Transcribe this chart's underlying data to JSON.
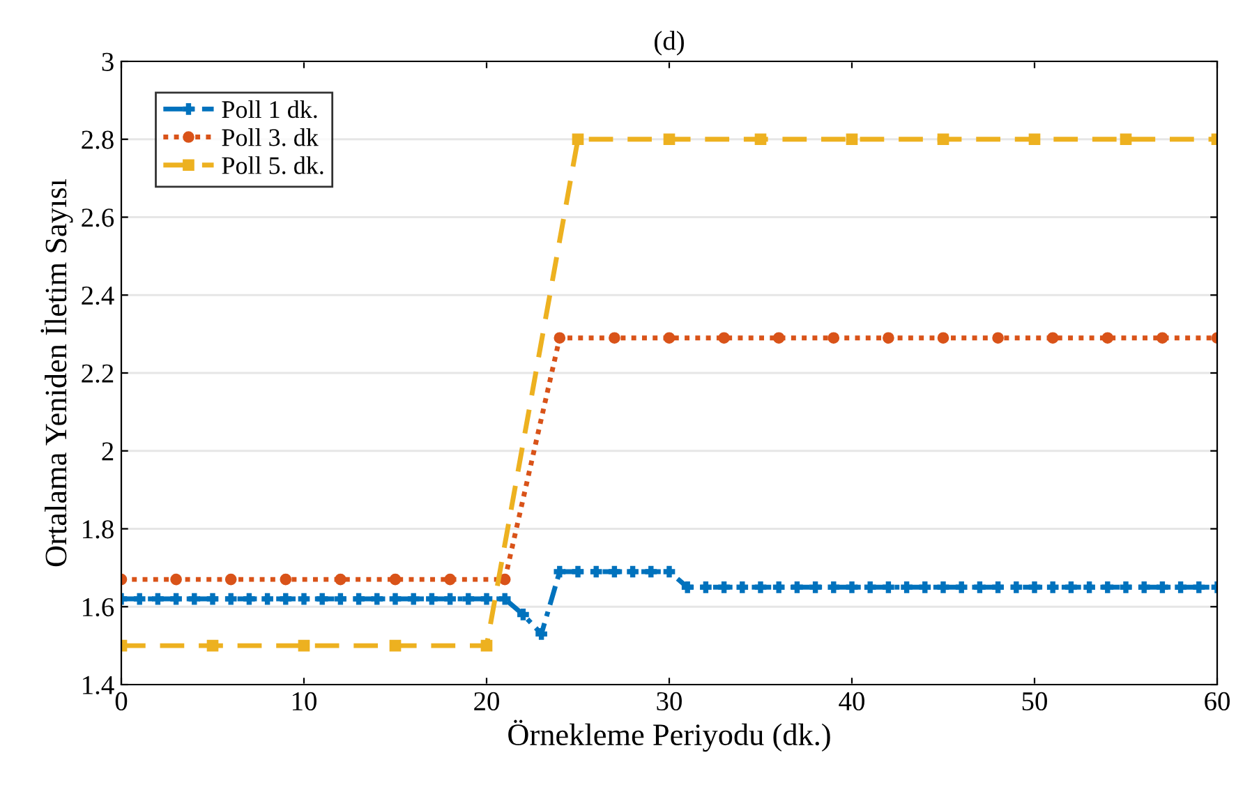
{
  "chart_data": {
    "type": "line",
    "title": "(d)",
    "xlabel": "Örnekleme Periyodu (dk.)",
    "ylabel": "Ortalama Yeniden İletim Sayısı",
    "xlim": [
      0,
      60
    ],
    "xticks": [
      0,
      10,
      20,
      30,
      40,
      50,
      60
    ],
    "ylim": [
      1.4,
      3
    ],
    "yticks": [
      1.4,
      1.6,
      1.8,
      2,
      2.2,
      2.4,
      2.6,
      2.8,
      3
    ],
    "grid": "y",
    "legend": "top left",
    "series": [
      {
        "name": "Poll 1 dk.",
        "color": "#0072bd",
        "marker": "cross",
        "line_style": "dashdot",
        "x": [
          0,
          1,
          2,
          3,
          4,
          5,
          6,
          7,
          8,
          9,
          10,
          11,
          12,
          13,
          14,
          15,
          16,
          17,
          18,
          19,
          20,
          21,
          22,
          23,
          24,
          25,
          26,
          27,
          28,
          29,
          30,
          31,
          32,
          33,
          34,
          35,
          36,
          37,
          38,
          39,
          40,
          41,
          42,
          43,
          44,
          45,
          46,
          47,
          48,
          49,
          50,
          51,
          52,
          53,
          54,
          55,
          56,
          57,
          58,
          59,
          60
        ],
        "values": [
          1.62,
          1.62,
          1.62,
          1.62,
          1.62,
          1.62,
          1.62,
          1.62,
          1.62,
          1.62,
          1.62,
          1.62,
          1.62,
          1.62,
          1.62,
          1.62,
          1.62,
          1.62,
          1.62,
          1.62,
          1.62,
          1.62,
          1.58,
          1.53,
          1.69,
          1.69,
          1.69,
          1.69,
          1.69,
          1.69,
          1.69,
          1.65,
          1.65,
          1.65,
          1.65,
          1.65,
          1.65,
          1.65,
          1.65,
          1.65,
          1.65,
          1.65,
          1.65,
          1.65,
          1.65,
          1.65,
          1.65,
          1.65,
          1.65,
          1.65,
          1.65,
          1.65,
          1.65,
          1.65,
          1.65,
          1.65,
          1.65,
          1.65,
          1.65,
          1.65,
          1.65
        ]
      },
      {
        "name": "Poll 3. dk",
        "color": "#d95319",
        "marker": "circle",
        "line_style": "dotted",
        "x": [
          0,
          3,
          6,
          9,
          12,
          15,
          18,
          21,
          24,
          27,
          30,
          33,
          36,
          39,
          42,
          45,
          48,
          51,
          54,
          57,
          60
        ],
        "values": [
          1.67,
          1.67,
          1.67,
          1.67,
          1.67,
          1.67,
          1.67,
          1.67,
          2.29,
          2.29,
          2.29,
          2.29,
          2.29,
          2.29,
          2.29,
          2.29,
          2.29,
          2.29,
          2.29,
          2.29,
          2.29
        ]
      },
      {
        "name": "Poll 5. dk.",
        "color": "#edb120",
        "marker": "square",
        "line_style": "dashed",
        "x": [
          0,
          5,
          10,
          15,
          20,
          25,
          30,
          35,
          40,
          45,
          50,
          55,
          60
        ],
        "values": [
          1.5,
          1.5,
          1.5,
          1.5,
          1.5,
          2.8,
          2.8,
          2.8,
          2.8,
          2.8,
          2.8,
          2.8,
          2.8
        ]
      }
    ]
  }
}
